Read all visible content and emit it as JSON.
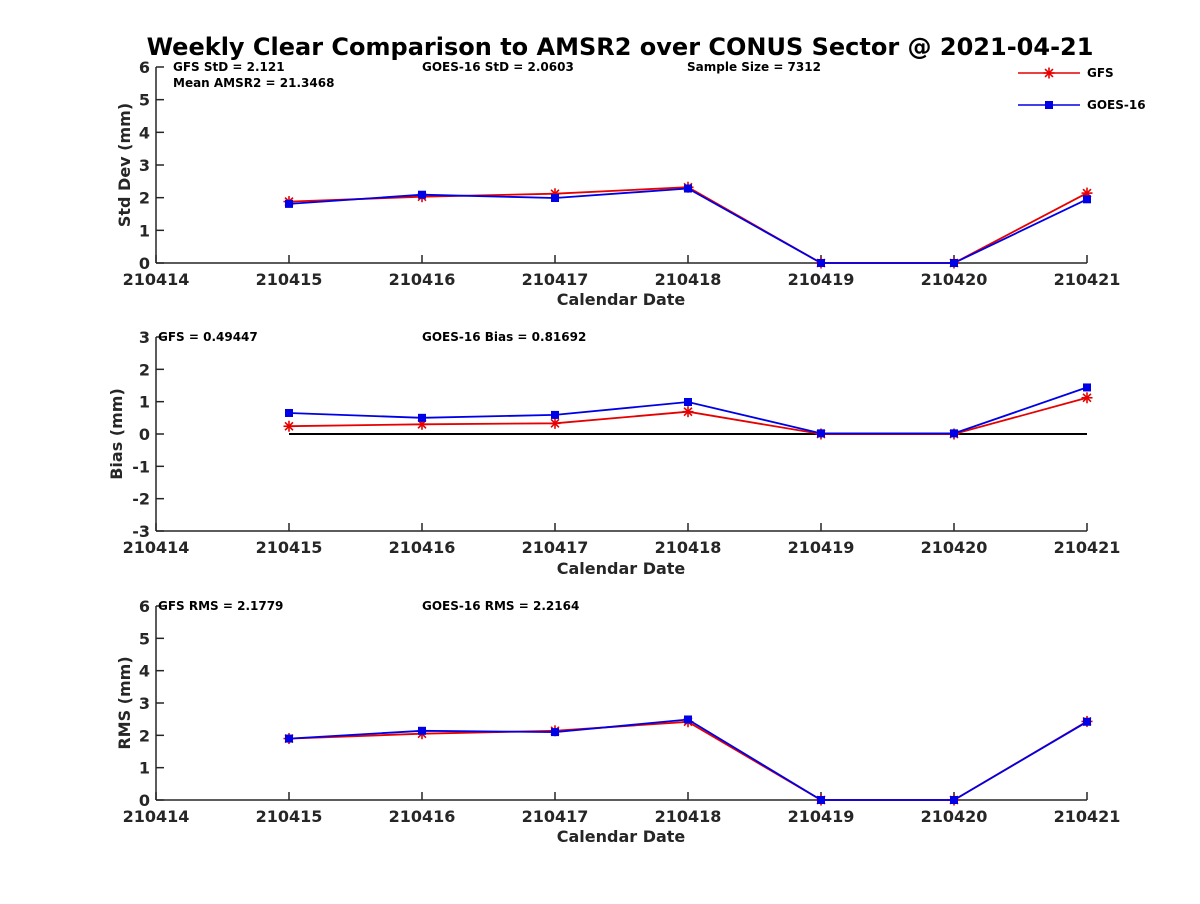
{
  "chart_data": {
    "title": "Weekly Clear Comparison to AMSR2 over CONUS Sector @ 2021-04-21",
    "legend": {
      "placement": "top-right",
      "entries": [
        {
          "name": "GFS",
          "color": "#e60000",
          "marker": "asterisk"
        },
        {
          "name": "GOES-16",
          "color": "#0000e6",
          "marker": "square"
        }
      ]
    },
    "panels": [
      {
        "type": "line",
        "xlabel": "Calendar Date",
        "ylabel": "Std Dev (mm)",
        "ylim": [
          0,
          6
        ],
        "yticks": [
          "0",
          "1",
          "2",
          "3",
          "4",
          "5",
          "6"
        ],
        "categories": [
          "210414",
          "210415",
          "210416",
          "210417",
          "210418",
          "210419",
          "210420",
          "210421"
        ],
        "zero_line": false,
        "annotations": [
          "GFS StD = 2.121",
          "Mean AMSR2 = 21.3468",
          "GOES-16 StD = 2.0603",
          "Sample Size = 7312"
        ],
        "series": [
          {
            "name": "GFS",
            "values": [
              null,
              1.88,
              2.03,
              2.12,
              2.32,
              0.0,
              0.0,
              2.14
            ]
          },
          {
            "name": "GOES-16",
            "values": [
              null,
              1.81,
              2.09,
              1.99,
              2.28,
              0.0,
              0.0,
              1.95
            ]
          }
        ]
      },
      {
        "type": "line",
        "xlabel": "Calendar Date",
        "ylabel": "Bias (mm)",
        "ylim": [
          -3,
          3
        ],
        "yticks": [
          "-3",
          "-2",
          "-1",
          "0",
          "1",
          "2",
          "3"
        ],
        "categories": [
          "210414",
          "210415",
          "210416",
          "210417",
          "210418",
          "210419",
          "210420",
          "210421"
        ],
        "zero_line": true,
        "annotations": [
          "GFS = 0.49447",
          "GOES-16 Bias  = 0.81692"
        ],
        "series": [
          {
            "name": "GFS",
            "values": [
              null,
              0.24,
              0.3,
              0.33,
              0.69,
              0.0,
              0.0,
              1.12
            ]
          },
          {
            "name": "GOES-16",
            "values": [
              null,
              0.65,
              0.5,
              0.59,
              0.99,
              0.02,
              0.02,
              1.44
            ]
          }
        ]
      },
      {
        "type": "line",
        "xlabel": "Calendar Date",
        "ylabel": "RMS (mm)",
        "ylim": [
          0,
          6
        ],
        "yticks": [
          "0",
          "1",
          "2",
          "3",
          "4",
          "5",
          "6"
        ],
        "categories": [
          "210414",
          "210415",
          "210416",
          "210417",
          "210418",
          "210419",
          "210420",
          "210421"
        ],
        "zero_line": false,
        "annotations": [
          "GFS RMS = 2.1779",
          "GOES-16 RMS = 2.2164"
        ],
        "series": [
          {
            "name": "GFS",
            "values": [
              null,
              1.9,
              2.05,
              2.14,
              2.42,
              0.0,
              0.0,
              2.43
            ]
          },
          {
            "name": "GOES-16",
            "values": [
              null,
              1.9,
              2.14,
              2.1,
              2.49,
              0.0,
              0.0,
              2.42
            ]
          }
        ]
      }
    ]
  }
}
